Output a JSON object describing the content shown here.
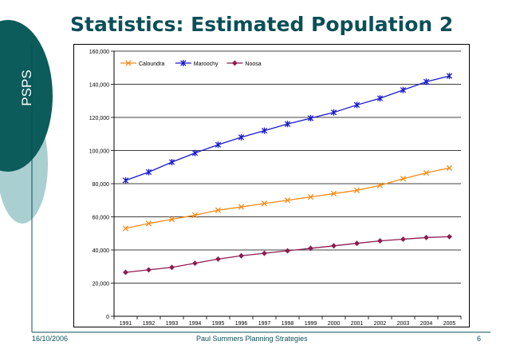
{
  "slide": {
    "title": "Statistics: Estimated Population 2",
    "side_label": "PSPS",
    "footer_date": "16/10/2006",
    "footer_author": "Paul Summers Planning Strategies",
    "page_number": "6",
    "colors": {
      "teal_dark": "#0b5c5a",
      "teal_light": "#a9cfd0",
      "title": "#0b4f57"
    }
  },
  "chart_data": {
    "type": "line",
    "x": [
      "1991",
      "1992",
      "1993",
      "1994",
      "1995",
      "1996",
      "1997",
      "1998",
      "1999",
      "2000",
      "2001",
      "2002",
      "2003",
      "2004",
      "2005"
    ],
    "ylim": [
      0,
      160000
    ],
    "yticks": [
      0,
      20000,
      40000,
      60000,
      80000,
      100000,
      120000,
      140000,
      160000
    ],
    "ytick_labels": [
      "0",
      "20,000",
      "40,000",
      "60,000",
      "80,000",
      "100,000",
      "120,000",
      "140,000",
      "160,000"
    ],
    "grid": true,
    "legend_position": "top-left",
    "series": [
      {
        "name": "Caloundra",
        "color": "#f28c18",
        "marker": "x",
        "values": [
          53000,
          56000,
          58500,
          61000,
          64000,
          66000,
          68000,
          70000,
          72000,
          74000,
          76000,
          79000,
          83000,
          86500,
          89500
        ]
      },
      {
        "name": "Maroochy",
        "color": "#1a1acc",
        "marker": "star",
        "values": [
          82000,
          87000,
          93000,
          98500,
          103500,
          108000,
          112000,
          116000,
          119500,
          123000,
          127500,
          131500,
          136500,
          141500,
          145000
        ]
      },
      {
        "name": "Noosa",
        "color": "#8b1d4f",
        "marker": "diamond",
        "values": [
          26500,
          28000,
          29500,
          32000,
          34500,
          36500,
          38000,
          39500,
          41000,
          42500,
          44000,
          45500,
          46500,
          47500,
          48000
        ]
      }
    ]
  }
}
